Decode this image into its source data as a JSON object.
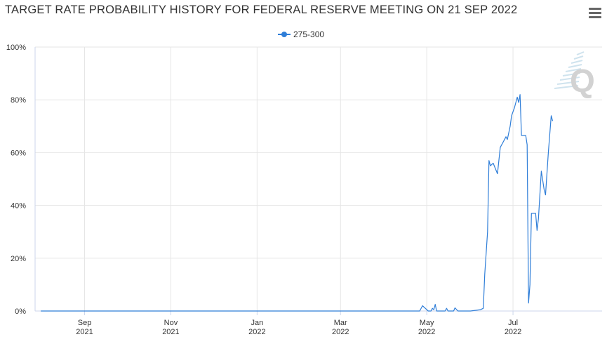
{
  "header": {
    "title": "TARGET RATE PROBABILITY HISTORY FOR FEDERAL RESERVE MEETING ON 21 SEP 2022",
    "menu_icon": "hamburger-menu-icon"
  },
  "colors": {
    "series": "#2f7ed8",
    "grid": "#e6e6e6",
    "axis": "#333333"
  },
  "chart_data": {
    "type": "line",
    "title": "TARGET RATE PROBABILITY HISTORY FOR FEDERAL RESERVE MEETING ON 21 SEP 2022",
    "xlabel": "",
    "ylabel": "",
    "ylim": [
      0,
      100
    ],
    "xlim": [
      "2021-07-28",
      "2022-09-02"
    ],
    "legend_position": "top-center",
    "grid": true,
    "y_ticks": [
      "0%",
      "20%",
      "40%",
      "60%",
      "80%",
      "100%"
    ],
    "x_ticks": [
      {
        "date": "2021-09-01",
        "label1": "Sep",
        "label2": "2021"
      },
      {
        "date": "2021-11-01",
        "label1": "Nov",
        "label2": "2021"
      },
      {
        "date": "2022-01-01",
        "label1": "Jan",
        "label2": "2022"
      },
      {
        "date": "2022-03-01",
        "label1": "Mar",
        "label2": "2022"
      },
      {
        "date": "2022-05-01",
        "label1": "May",
        "label2": "2022"
      },
      {
        "date": "2022-07-01",
        "label1": "Jul",
        "label2": "2022"
      }
    ],
    "series": [
      {
        "name": "275-300",
        "points": [
          [
            "2021-08-01",
            0
          ],
          [
            "2021-10-01",
            0
          ],
          [
            "2021-12-01",
            0
          ],
          [
            "2022-02-01",
            0
          ],
          [
            "2022-04-01",
            0
          ],
          [
            "2022-04-26",
            0
          ],
          [
            "2022-04-28",
            2
          ],
          [
            "2022-04-30",
            1
          ],
          [
            "2022-05-02",
            0
          ],
          [
            "2022-05-04",
            0
          ],
          [
            "2022-05-05",
            1
          ],
          [
            "2022-05-06",
            0.5
          ],
          [
            "2022-05-07",
            2.5
          ],
          [
            "2022-05-08",
            0
          ],
          [
            "2022-05-10",
            0
          ],
          [
            "2022-05-14",
            0
          ],
          [
            "2022-05-15",
            1
          ],
          [
            "2022-05-16",
            0
          ],
          [
            "2022-05-20",
            0
          ],
          [
            "2022-05-21",
            1.2
          ],
          [
            "2022-05-23",
            0
          ],
          [
            "2022-06-01",
            0
          ],
          [
            "2022-06-08",
            0.5
          ],
          [
            "2022-06-10",
            1
          ],
          [
            "2022-06-11",
            14
          ],
          [
            "2022-06-13",
            30
          ],
          [
            "2022-06-14",
            57
          ],
          [
            "2022-06-15",
            55
          ],
          [
            "2022-06-17",
            56
          ],
          [
            "2022-06-20",
            52
          ],
          [
            "2022-06-22",
            62
          ],
          [
            "2022-06-24",
            64
          ],
          [
            "2022-06-26",
            66
          ],
          [
            "2022-06-27",
            65
          ],
          [
            "2022-06-29",
            70
          ],
          [
            "2022-06-30",
            74
          ],
          [
            "2022-07-02",
            77
          ],
          [
            "2022-07-04",
            81
          ],
          [
            "2022-07-05",
            79
          ],
          [
            "2022-07-06",
            82
          ],
          [
            "2022-07-07",
            66.5
          ],
          [
            "2022-07-10",
            66.5
          ],
          [
            "2022-07-11",
            63
          ],
          [
            "2022-07-12",
            3
          ],
          [
            "2022-07-13",
            10
          ],
          [
            "2022-07-14",
            37
          ],
          [
            "2022-07-17",
            37
          ],
          [
            "2022-07-18",
            30.5
          ],
          [
            "2022-07-19",
            35
          ],
          [
            "2022-07-21",
            53
          ],
          [
            "2022-07-23",
            46
          ],
          [
            "2022-07-24",
            44
          ],
          [
            "2022-07-26",
            60
          ],
          [
            "2022-07-28",
            74
          ],
          [
            "2022-07-29",
            72
          ]
        ]
      }
    ]
  }
}
